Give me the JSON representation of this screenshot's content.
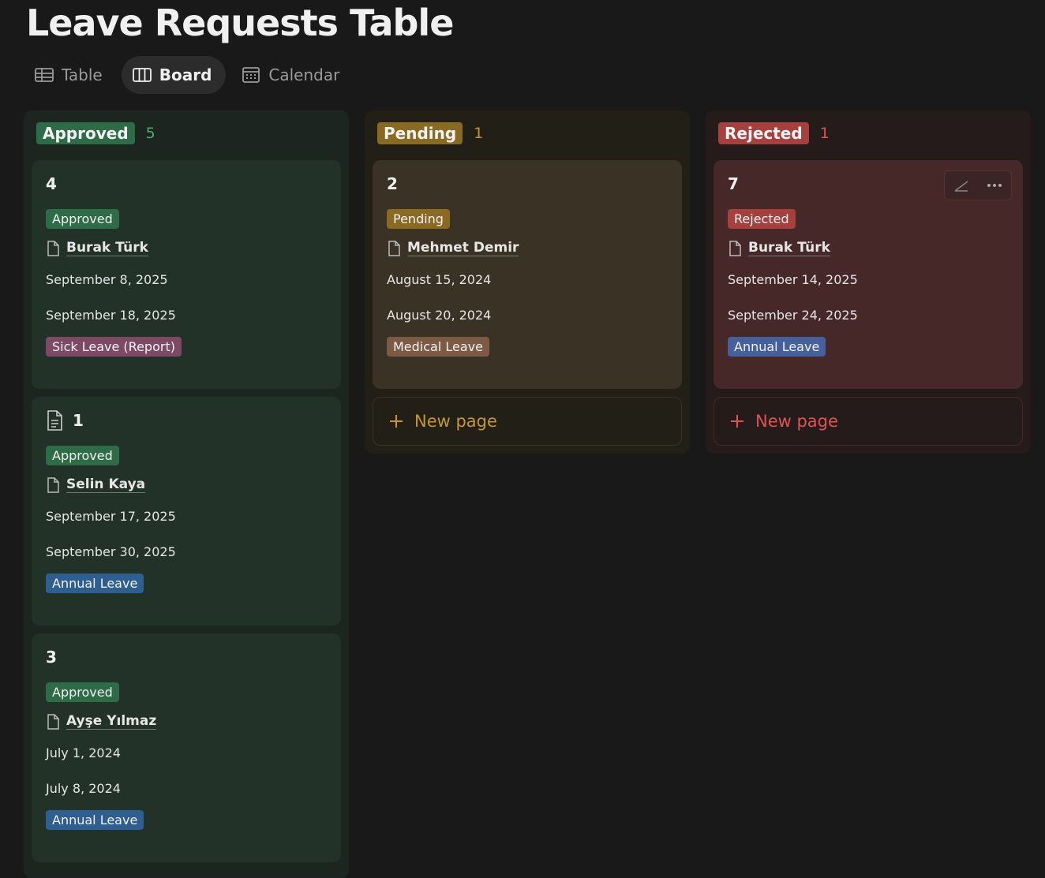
{
  "header": {
    "title": "Leave Requests Table"
  },
  "tabs": [
    {
      "label": "Table",
      "active": false
    },
    {
      "label": "Board",
      "active": true
    },
    {
      "label": "Calendar",
      "active": false
    }
  ],
  "columns": [
    {
      "name": "Approved",
      "count": "5",
      "theme": "green",
      "cards": [
        {
          "title": "4",
          "status": "Approved",
          "person": "Burak Türk",
          "start": "September 8, 2025",
          "end": "September 18, 2025",
          "type": "Sick Leave (Report)",
          "type_color": "pink",
          "icon": false
        },
        {
          "title": "1",
          "status": "Approved",
          "person": "Selin Kaya",
          "start": "September 17, 2025",
          "end": "September 30, 2025",
          "type": "Annual Leave",
          "type_color": "blue",
          "icon": true
        },
        {
          "title": "3",
          "status": "Approved",
          "person": "Ayşe Yılmaz",
          "start": "July 1, 2024",
          "end": "July 8, 2024",
          "type": "Annual Leave",
          "type_color": "blue",
          "icon": false
        }
      ]
    },
    {
      "name": "Pending",
      "count": "1",
      "theme": "yellow",
      "new_page": "New page",
      "cards": [
        {
          "title": "2",
          "status": "Pending",
          "person": "Mehmet Demir",
          "start": "August 15, 2024",
          "end": "August 20, 2024",
          "type": "Medical Leave",
          "type_color": "brown",
          "icon": false
        }
      ]
    },
    {
      "name": "Rejected",
      "count": "1",
      "theme": "red",
      "new_page": "New page",
      "cards": [
        {
          "title": "7",
          "status": "Rejected",
          "person": "Burak Türk",
          "start": "September 14, 2025",
          "end": "September 24, 2025",
          "type": "Annual Leave",
          "type_color": "navy",
          "icon": false,
          "hover": true
        }
      ]
    }
  ]
}
